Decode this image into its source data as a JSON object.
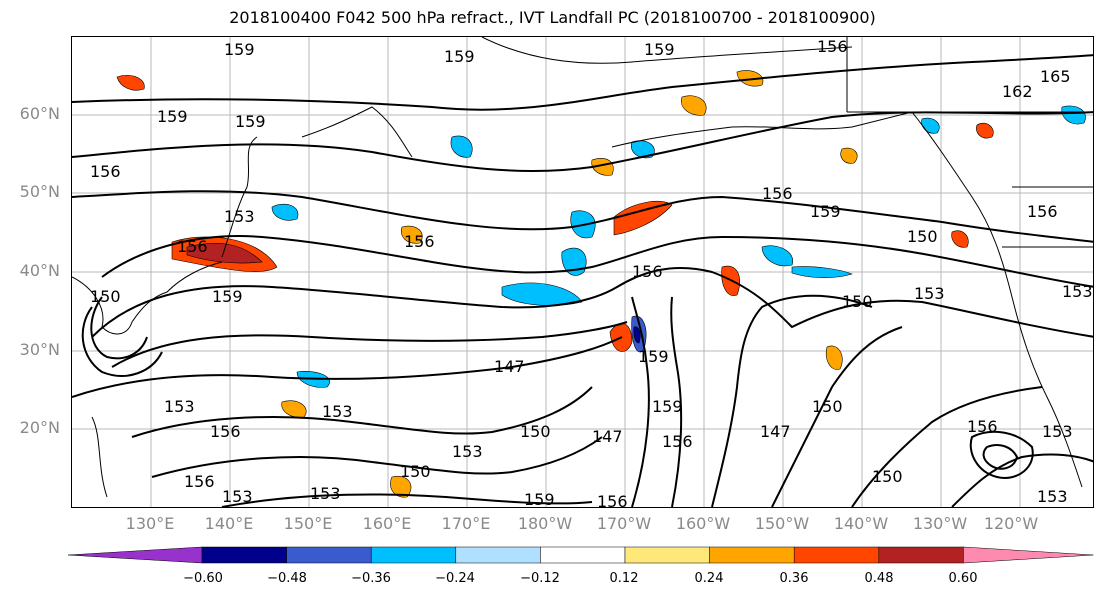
{
  "title": "2018100400 F042 500 hPa refract., IVT Landfall PC (2018100700 - 2018100900)",
  "map": {
    "lat_labels": [
      "60°N",
      "50°N",
      "40°N",
      "30°N",
      "20°N"
    ],
    "lon_labels": [
      "130°E",
      "140°E",
      "150°E",
      "160°E",
      "170°E",
      "180°W",
      "170°W",
      "160°W",
      "150°W",
      "140°W",
      "130°W",
      "120°W"
    ],
    "contour_labels": [
      "159",
      "159",
      "156",
      "159",
      "159",
      "156",
      "156",
      "153",
      "156",
      "150",
      "159",
      "153",
      "156",
      "159",
      "156",
      "159",
      "156",
      "159",
      "150",
      "153",
      "147",
      "159",
      "150",
      "153",
      "150",
      "147",
      "153",
      "156",
      "150",
      "147",
      "153",
      "153",
      "156",
      "150",
      "150",
      "156",
      "153",
      "159",
      "156",
      "156",
      "153",
      "153",
      "165",
      "162"
    ],
    "shading_colors": {
      "warm_light": "#ffe87a",
      "warm_mid": "#ffa500",
      "warm_strong": "#ff4500",
      "warm_max": "#b22222",
      "cool_light": "#aadcff",
      "cool_mid": "#00bfff",
      "cool_strong": "#3a5bcc",
      "cool_max": "#00008b"
    }
  },
  "colorbar": {
    "tick_labels": [
      "−0.60",
      "−0.48",
      "−0.36",
      "−0.24",
      "−0.12",
      "0.12",
      "0.24",
      "0.36",
      "0.48",
      "0.60"
    ],
    "colors": [
      "#9932cc",
      "#00008b",
      "#3a5bcc",
      "#00bfff",
      "#b0e0ff",
      "#ffffff",
      "#ffe87a",
      "#ffa500",
      "#ff4500",
      "#b22222",
      "#ff8ab0"
    ]
  }
}
